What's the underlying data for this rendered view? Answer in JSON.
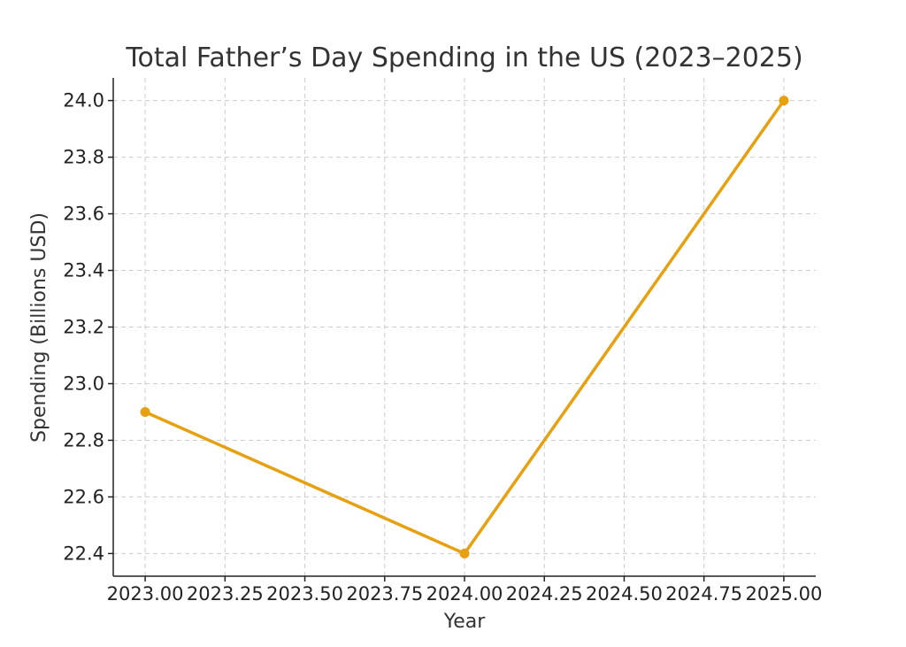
{
  "chart_data": {
    "type": "line",
    "title": "Total Father’s Day Spending in the US (2023–2025)",
    "xlabel": "Year",
    "ylabel": "Spending (Billions USD)",
    "x": [
      2023,
      2024,
      2025
    ],
    "series": [
      {
        "values": [
          22.9,
          22.4,
          24.0
        ],
        "color": "#e6a010"
      }
    ],
    "xlim": [
      2022.9,
      2025.1
    ],
    "ylim": [
      22.32,
      24.08
    ],
    "xticks": [
      2023.0,
      2023.25,
      2023.5,
      2023.75,
      2024.0,
      2024.25,
      2024.5,
      2024.75,
      2025.0
    ],
    "xtick_labels": [
      "2023.00",
      "2023.25",
      "2023.50",
      "2023.75",
      "2024.00",
      "2024.25",
      "2024.50",
      "2024.75",
      "2025.00"
    ],
    "yticks": [
      22.4,
      22.6,
      22.8,
      23.0,
      23.2,
      23.4,
      23.6,
      23.8,
      24.0
    ],
    "ytick_labels": [
      "22.4",
      "22.6",
      "22.8",
      "23.0",
      "23.2",
      "23.4",
      "23.6",
      "23.8",
      "24.0"
    ],
    "grid": true,
    "marker": "circle"
  }
}
